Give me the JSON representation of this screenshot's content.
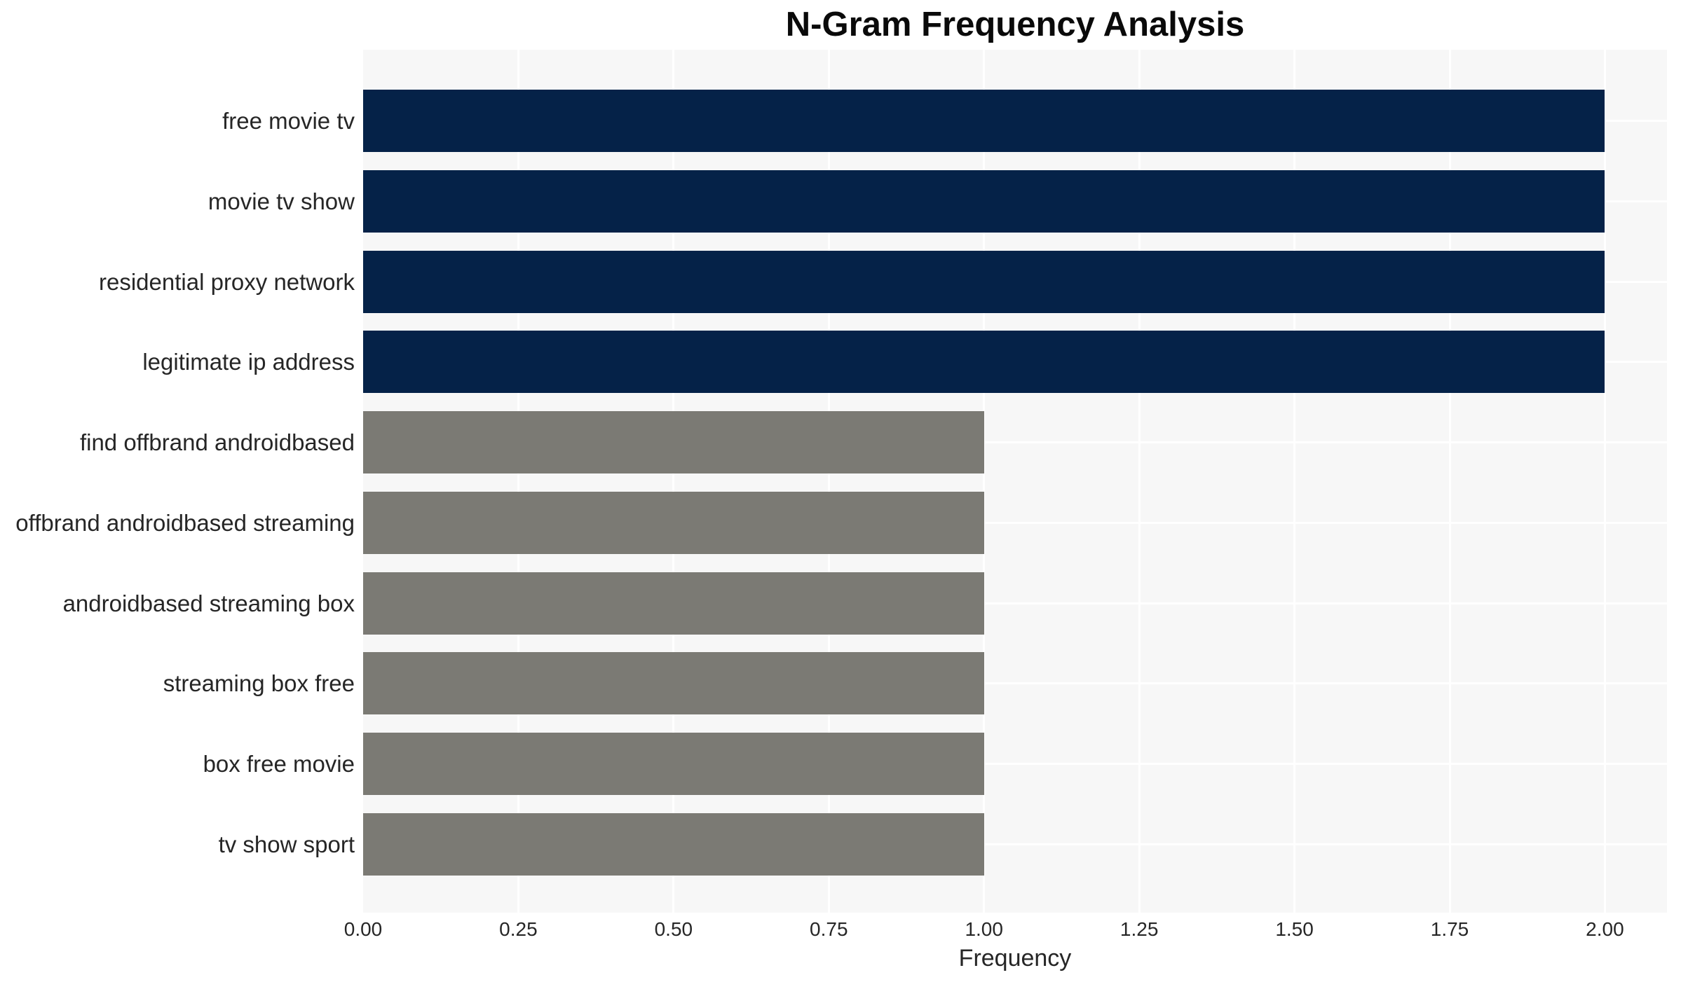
{
  "chart_data": {
    "type": "bar",
    "orientation": "horizontal",
    "title": "N-Gram Frequency Analysis",
    "xlabel": "Frequency",
    "ylabel": "",
    "categories": [
      "free movie tv",
      "movie tv show",
      "residential proxy network",
      "legitimate ip address",
      "find offbrand androidbased",
      "offbrand androidbased streaming",
      "androidbased streaming box",
      "streaming box free",
      "box free movie",
      "tv show sport"
    ],
    "values": [
      2.0,
      2.0,
      2.0,
      2.0,
      1.0,
      1.0,
      1.0,
      1.0,
      1.0,
      1.0
    ],
    "xlim": [
      0,
      2.1
    ],
    "xticks": [
      {
        "value": 0.0,
        "label": "0.00"
      },
      {
        "value": 0.25,
        "label": "0.25"
      },
      {
        "value": 0.5,
        "label": "0.50"
      },
      {
        "value": 0.75,
        "label": "0.75"
      },
      {
        "value": 1.0,
        "label": "1.00"
      },
      {
        "value": 1.25,
        "label": "1.25"
      },
      {
        "value": 1.5,
        "label": "1.50"
      },
      {
        "value": 1.75,
        "label": "1.75"
      },
      {
        "value": 2.0,
        "label": "2.00"
      }
    ],
    "grid": true,
    "legend": false,
    "colors": {
      "bar_high": "#052248",
      "bar_low": "#7b7a74",
      "plot_background": "#f7f7f7",
      "gridline": "#ffffff",
      "text": "#262626",
      "title_text": "#0a0a0a"
    },
    "bar_color_rule": "values >= 2 use bar_high (navy), values of 1 use bar_low (gray)"
  }
}
